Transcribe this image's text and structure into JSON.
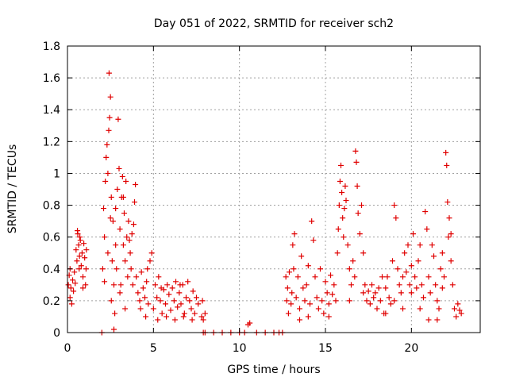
{
  "chart_data": {
    "type": "scatter",
    "title": "Day 051 of 2022, SRMTID for receiver sch2",
    "xlabel": "GPS time / hours",
    "ylabel": "SRMTID / TECUs",
    "xlim": [
      0,
      24
    ],
    "ylim": [
      0,
      1.8
    ],
    "xticks": [
      0,
      5,
      10,
      15,
      20
    ],
    "xtick_labels": [
      "0",
      "5",
      "10",
      "15",
      "20"
    ],
    "yticks": [
      0,
      0.2,
      0.4,
      0.6,
      0.8,
      1,
      1.2,
      1.4,
      1.6,
      1.8
    ],
    "ytick_labels": [
      "0",
      "0.2",
      "0.4",
      "0.6",
      "0.8",
      "1",
      "1.2",
      "1.4",
      "1.6",
      "1.8"
    ],
    "grid": true,
    "marker": "+",
    "marker_color": "#e00000",
    "series": [
      {
        "name": "SRMTID",
        "points": [
          [
            0.05,
            0.3
          ],
          [
            0.1,
            0.36
          ],
          [
            0.15,
            0.22
          ],
          [
            0.2,
            0.28
          ],
          [
            0.25,
            0.18
          ],
          [
            0.3,
            0.33
          ],
          [
            0.35,
            0.26
          ],
          [
            0.4,
            0.38
          ],
          [
            0.45,
            0.31
          ],
          [
            0.5,
            0.52
          ],
          [
            0.55,
            0.45
          ],
          [
            0.6,
            0.62
          ],
          [
            0.65,
            0.55
          ],
          [
            0.7,
            0.48
          ],
          [
            0.75,
            0.58
          ],
          [
            0.8,
            0.42
          ],
          [
            0.85,
            0.5
          ],
          [
            0.9,
            0.35
          ],
          [
            0.95,
            0.56
          ],
          [
            1.0,
            0.47
          ],
          [
            1.05,
            0.3
          ],
          [
            1.1,
            0.52
          ],
          [
            0.58,
            0.64
          ],
          [
            0.72,
            0.6
          ],
          [
            0.68,
            0.4
          ],
          [
            0.15,
            0.4
          ],
          [
            0.9,
            0.28
          ],
          [
            1.08,
            0.4
          ],
          [
            2.0,
            0.0
          ],
          [
            2.1,
            0.78
          ],
          [
            2.15,
            0.6
          ],
          [
            2.2,
            0.95
          ],
          [
            2.25,
            1.1
          ],
          [
            2.3,
            1.18
          ],
          [
            2.35,
            1.0
          ],
          [
            2.4,
            1.27
          ],
          [
            2.45,
            1.35
          ],
          [
            2.5,
            1.48
          ],
          [
            2.42,
            1.63
          ],
          [
            2.55,
            0.85
          ],
          [
            2.6,
            0.45
          ],
          [
            2.65,
            0.7
          ],
          [
            2.7,
            0.3
          ],
          [
            2.75,
            0.12
          ],
          [
            2.8,
            0.55
          ],
          [
            2.85,
            0.4
          ],
          [
            2.9,
            0.9
          ],
          [
            2.95,
            1.34
          ],
          [
            3.0,
            1.03
          ],
          [
            3.05,
            0.65
          ],
          [
            3.1,
            0.3
          ],
          [
            3.15,
            0.85
          ],
          [
            3.2,
            0.98
          ],
          [
            3.25,
            0.55
          ],
          [
            3.3,
            0.75
          ],
          [
            3.35,
            0.45
          ],
          [
            3.4,
            0.95
          ],
          [
            3.45,
            0.6
          ],
          [
            3.5,
            0.35
          ],
          [
            3.55,
            0.7
          ],
          [
            3.6,
            0.58
          ],
          [
            3.65,
            0.5
          ],
          [
            3.7,
            0.4
          ],
          [
            3.75,
            0.62
          ],
          [
            3.8,
            0.3
          ],
          [
            3.85,
            0.68
          ],
          [
            3.9,
            0.82
          ],
          [
            3.95,
            0.93
          ],
          [
            2.7,
            0.02
          ],
          [
            2.15,
            0.32
          ],
          [
            2.35,
            0.5
          ],
          [
            2.55,
            0.2
          ],
          [
            3.05,
            0.25
          ],
          [
            3.35,
            0.15
          ],
          [
            2.05,
            0.4
          ],
          [
            2.5,
            0.72
          ],
          [
            2.8,
            0.78
          ],
          [
            3.25,
            0.85
          ],
          [
            4.0,
            0.35
          ],
          [
            4.1,
            0.25
          ],
          [
            4.2,
            0.2
          ],
          [
            4.3,
            0.38
          ],
          [
            4.4,
            0.28
          ],
          [
            4.5,
            0.22
          ],
          [
            4.6,
            0.32
          ],
          [
            4.7,
            0.18
          ],
          [
            4.8,
            0.45
          ],
          [
            4.9,
            0.5
          ],
          [
            5.0,
            0.15
          ],
          [
            5.1,
            0.3
          ],
          [
            5.2,
            0.22
          ],
          [
            5.3,
            0.35
          ],
          [
            5.4,
            0.2
          ],
          [
            5.5,
            0.12
          ],
          [
            5.6,
            0.27
          ],
          [
            5.7,
            0.18
          ],
          [
            5.8,
            0.3
          ],
          [
            5.9,
            0.24
          ],
          [
            6.0,
            0.14
          ],
          [
            6.1,
            0.28
          ],
          [
            6.2,
            0.2
          ],
          [
            6.3,
            0.32
          ],
          [
            6.4,
            0.16
          ],
          [
            6.5,
            0.25
          ],
          [
            6.6,
            0.18
          ],
          [
            6.7,
            0.3
          ],
          [
            6.8,
            0.12
          ],
          [
            6.9,
            0.22
          ],
          [
            7.0,
            0.32
          ],
          [
            7.1,
            0.2
          ],
          [
            7.2,
            0.15
          ],
          [
            7.3,
            0.26
          ],
          [
            7.4,
            0.12
          ],
          [
            7.5,
            0.22
          ],
          [
            7.6,
            0.18
          ],
          [
            7.8,
            0.1
          ],
          [
            7.9,
            0.08
          ],
          [
            8.0,
            0.12
          ],
          [
            4.25,
            0.15
          ],
          [
            4.55,
            0.1
          ],
          [
            5.25,
            0.08
          ],
          [
            5.75,
            0.1
          ],
          [
            6.25,
            0.08
          ],
          [
            6.75,
            0.1
          ],
          [
            7.25,
            0.08
          ],
          [
            4.65,
            0.4
          ],
          [
            5.45,
            0.28
          ],
          [
            6.55,
            0.3
          ],
          [
            7.85,
            0.2
          ],
          [
            7.9,
            0.0
          ],
          [
            8.0,
            0.0
          ],
          [
            8.5,
            0.0
          ],
          [
            9.0,
            0.0
          ],
          [
            9.5,
            0.0
          ],
          [
            10.0,
            0.0
          ],
          [
            10.3,
            0.0
          ],
          [
            10.5,
            0.05
          ],
          [
            10.6,
            0.06
          ],
          [
            11.0,
            0.0
          ],
          [
            11.5,
            0.0
          ],
          [
            12.0,
            0.0
          ],
          [
            12.3,
            0.0
          ],
          [
            12.5,
            0.0
          ],
          [
            12.7,
            0.35
          ],
          [
            12.75,
            0.2
          ],
          [
            12.8,
            0.28
          ],
          [
            12.85,
            0.12
          ],
          [
            12.9,
            0.38
          ],
          [
            13.0,
            0.18
          ],
          [
            13.05,
            0.25
          ],
          [
            13.1,
            0.55
          ],
          [
            13.15,
            0.4
          ],
          [
            13.2,
            0.62
          ],
          [
            13.3,
            0.22
          ],
          [
            13.4,
            0.35
          ],
          [
            13.5,
            0.15
          ],
          [
            13.6,
            0.48
          ],
          [
            13.7,
            0.28
          ],
          [
            13.8,
            0.2
          ],
          [
            13.9,
            0.3
          ],
          [
            14.0,
            0.42
          ],
          [
            14.1,
            0.18
          ],
          [
            14.2,
            0.7
          ],
          [
            14.3,
            0.58
          ],
          [
            14.4,
            0.35
          ],
          [
            14.5,
            0.22
          ],
          [
            14.6,
            0.15
          ],
          [
            14.7,
            0.4
          ],
          [
            14.8,
            0.2
          ],
          [
            14.9,
            0.12
          ],
          [
            15.0,
            0.32
          ],
          [
            15.1,
            0.25
          ],
          [
            15.2,
            0.18
          ],
          [
            15.3,
            0.36
          ],
          [
            15.4,
            0.24
          ],
          [
            15.5,
            0.3
          ],
          [
            15.6,
            0.2
          ],
          [
            15.7,
            0.5
          ],
          [
            15.75,
            0.65
          ],
          [
            15.8,
            0.8
          ],
          [
            15.85,
            0.95
          ],
          [
            15.9,
            1.05
          ],
          [
            15.95,
            0.88
          ],
          [
            16.0,
            0.72
          ],
          [
            16.05,
            0.6
          ],
          [
            16.1,
            0.78
          ],
          [
            16.15,
            0.92
          ],
          [
            16.2,
            0.83
          ],
          [
            16.3,
            0.55
          ],
          [
            16.4,
            0.4
          ],
          [
            16.5,
            0.3
          ],
          [
            16.6,
            0.45
          ],
          [
            16.7,
            0.35
          ],
          [
            16.75,
            1.14
          ],
          [
            16.8,
            1.07
          ],
          [
            16.85,
            0.92
          ],
          [
            16.9,
            0.75
          ],
          [
            17.0,
            0.62
          ],
          [
            17.1,
            0.8
          ],
          [
            17.2,
            0.5
          ],
          [
            17.3,
            0.3
          ],
          [
            17.4,
            0.2
          ],
          [
            17.5,
            0.26
          ],
          [
            17.6,
            0.18
          ],
          [
            17.7,
            0.3
          ],
          [
            17.8,
            0.22
          ],
          [
            17.9,
            0.25
          ],
          [
            18.0,
            0.15
          ],
          [
            18.1,
            0.28
          ],
          [
            18.2,
            0.2
          ],
          [
            18.3,
            0.35
          ],
          [
            18.4,
            0.12
          ],
          [
            18.5,
            0.28
          ],
          [
            18.6,
            0.35
          ],
          [
            18.7,
            0.22
          ],
          [
            18.8,
            0.18
          ],
          [
            18.9,
            0.45
          ],
          [
            19.0,
            0.8
          ],
          [
            19.1,
            0.72
          ],
          [
            19.2,
            0.4
          ],
          [
            19.3,
            0.3
          ],
          [
            19.4,
            0.25
          ],
          [
            19.5,
            0.35
          ],
          [
            19.6,
            0.5
          ],
          [
            19.7,
            0.38
          ],
          [
            19.8,
            0.55
          ],
          [
            19.9,
            0.3
          ],
          [
            20.0,
            0.42
          ],
          [
            20.1,
            0.62
          ],
          [
            20.2,
            0.35
          ],
          [
            20.3,
            0.28
          ],
          [
            20.4,
            0.45
          ],
          [
            20.5,
            0.55
          ],
          [
            20.6,
            0.3
          ],
          [
            20.7,
            0.22
          ],
          [
            20.8,
            0.76
          ],
          [
            20.9,
            0.65
          ],
          [
            21.0,
            0.35
          ],
          [
            21.1,
            0.25
          ],
          [
            21.2,
            0.55
          ],
          [
            21.3,
            0.48
          ],
          [
            21.4,
            0.3
          ],
          [
            21.5,
            0.2
          ],
          [
            21.6,
            0.15
          ],
          [
            21.7,
            0.4
          ],
          [
            21.8,
            0.28
          ],
          [
            21.9,
            0.35
          ],
          [
            22.0,
            1.13
          ],
          [
            22.05,
            1.05
          ],
          [
            22.1,
            0.82
          ],
          [
            22.15,
            0.6
          ],
          [
            22.2,
            0.72
          ],
          [
            22.3,
            0.45
          ],
          [
            22.4,
            0.3
          ],
          [
            22.5,
            0.15
          ],
          [
            22.6,
            0.1
          ],
          [
            22.7,
            0.18
          ],
          [
            22.8,
            0.14
          ],
          [
            22.9,
            0.12
          ],
          [
            21.0,
            0.08
          ],
          [
            21.5,
            0.08
          ],
          [
            20.5,
            0.15
          ],
          [
            19.5,
            0.15
          ],
          [
            15.2,
            0.1
          ],
          [
            14.0,
            0.1
          ],
          [
            13.5,
            0.08
          ],
          [
            16.4,
            0.2
          ],
          [
            17.2,
            0.25
          ],
          [
            18.5,
            0.12
          ],
          [
            19.0,
            0.2
          ],
          [
            20.0,
            0.25
          ],
          [
            22.3,
            0.62
          ],
          [
            21.8,
            0.5
          ]
        ]
      }
    ]
  }
}
